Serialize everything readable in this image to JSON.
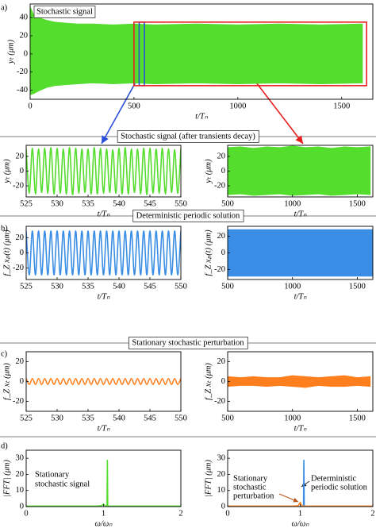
{
  "sections": [
    "Stochastic signal (after transients decay)",
    "Deterministic periodic solution",
    "Stationary stochastic perturbation"
  ],
  "chart_data": [
    {
      "type": "area",
      "panel_label": "a)",
      "annotation": "Stochastic signal",
      "xlabel": "t/Tₙ",
      "ylabel": "yₜ (μm)",
      "xlim": [
        0,
        1650
      ],
      "xticks": [
        0,
        500,
        1000,
        1500
      ],
      "ylim": [
        -50,
        55
      ],
      "yticks": [
        -40,
        -20,
        0,
        20,
        40
      ],
      "x": [
        0,
        15,
        40,
        80,
        120,
        170,
        230,
        300,
        400,
        500,
        600,
        800,
        1000,
        1200,
        1400,
        1600
      ],
      "series": [
        {
          "color": "#55dd2e",
          "upper": [
            52,
            44,
            40,
            37,
            35,
            34,
            33,
            33,
            32,
            33,
            32,
            33,
            32,
            33,
            32,
            33
          ],
          "lower": [
            -45,
            -44,
            -41,
            -37,
            -35,
            -34,
            -33,
            -32,
            -33,
            -32,
            -33,
            -32,
            -33,
            -32,
            -33,
            -32
          ]
        }
      ]
    },
    {
      "type": "line",
      "xlabel": "t/Tₙ",
      "ylabel": "yₜ (μm)",
      "xlim": [
        525,
        550
      ],
      "xticks": [
        525,
        530,
        535,
        540,
        545,
        550
      ],
      "ylim": [
        -35,
        35
      ],
      "yticks": [
        -20,
        0,
        20
      ],
      "x": [
        525,
        525.5,
        526,
        526.5,
        527,
        527.5,
        528,
        528.5,
        529,
        529.5,
        530,
        530.5,
        531,
        531.5,
        532,
        532.5,
        533,
        533.5,
        534,
        534.5,
        535,
        535.5,
        536,
        536.5,
        537,
        537.5,
        538,
        538.5,
        539,
        539.5,
        540,
        540.5,
        541,
        541.5,
        542,
        542.5,
        543,
        543.5,
        544,
        544.5,
        545,
        545.5,
        546,
        546.5,
        547,
        547.5,
        548,
        548.5,
        549,
        549.5,
        550
      ],
      "series": [
        {
          "color": "#55dd2e",
          "values": [
            30,
            -30,
            31,
            -31,
            30,
            -29,
            31,
            -30,
            32,
            -31,
            31,
            -30,
            30,
            -31,
            32,
            -32,
            31,
            -30,
            30,
            -29,
            30,
            -31,
            32,
            -31,
            31,
            -30,
            30,
            -29,
            29,
            -30,
            31,
            -31,
            32,
            -31,
            30,
            -29,
            30,
            -31,
            31,
            -32,
            31,
            -30,
            30,
            -30,
            31,
            -31,
            30,
            -29,
            29,
            -30,
            31
          ]
        }
      ]
    },
    {
      "type": "area",
      "xlabel": "t/Tₙ",
      "ylabel": "yₜ (μm)",
      "xlim": [
        500,
        1620
      ],
      "xticks": [
        500,
        1000,
        1500
      ],
      "ylim": [
        -35,
        35
      ],
      "yticks": [
        -20,
        0,
        20
      ],
      "x": [
        500,
        600,
        700,
        800,
        900,
        1000,
        1100,
        1200,
        1300,
        1400,
        1500,
        1600
      ],
      "series": [
        {
          "color": "#55dd2e",
          "upper": [
            32,
            33,
            31,
            33,
            32,
            34,
            32,
            33,
            31,
            33,
            32,
            33
          ],
          "lower": [
            -32,
            -31,
            -33,
            -32,
            -31,
            -33,
            -32,
            -31,
            -33,
            -32,
            -31,
            -32
          ]
        }
      ]
    },
    {
      "type": "line",
      "panel_label": "b)",
      "xlabel": "t/Tₙ",
      "ylabel": "f_Z xₚ(t) (μm)",
      "xlim": [
        525,
        550
      ],
      "xticks": [
        525,
        530,
        535,
        540,
        545,
        550
      ],
      "ylim": [
        -35,
        35
      ],
      "yticks": [
        -20,
        0,
        20
      ],
      "x": [
        525,
        525.5,
        526,
        526.5,
        527,
        527.5,
        528,
        528.5,
        529,
        529.5,
        530,
        530.5,
        531,
        531.5,
        532,
        532.5,
        533,
        533.5,
        534,
        534.5,
        535,
        535.5,
        536,
        536.5,
        537,
        537.5,
        538,
        538.5,
        539,
        539.5,
        540,
        540.5,
        541,
        541.5,
        542,
        542.5,
        543,
        543.5,
        544,
        544.5,
        545,
        545.5,
        546,
        546.5,
        547,
        547.5,
        548,
        548.5,
        549,
        549.5,
        550
      ],
      "series": [
        {
          "color": "#3a8ee6",
          "values": [
            29,
            -29,
            29,
            -29,
            29,
            -29,
            29,
            -29,
            29,
            -29,
            29,
            -29,
            29,
            -29,
            29,
            -29,
            29,
            -29,
            29,
            -29,
            29,
            -29,
            29,
            -29,
            29,
            -29,
            29,
            -29,
            29,
            -29,
            29,
            -29,
            29,
            -29,
            29,
            -29,
            29,
            -29,
            29,
            -29,
            29,
            -29,
            29,
            -29,
            29,
            -29,
            29,
            -29,
            29,
            -29,
            29
          ]
        }
      ]
    },
    {
      "type": "area",
      "xlabel": "t/Tₙ",
      "ylabel": "f_Z xₚ(t) (μm)",
      "xlim": [
        500,
        1620
      ],
      "xticks": [
        500,
        1000,
        1500
      ],
      "ylim": [
        -32,
        32
      ],
      "yticks": [
        -20,
        0,
        20
      ],
      "x": [
        500,
        1620
      ],
      "series": [
        {
          "color": "#3a8ee6",
          "upper": [
            28,
            28
          ],
          "lower": [
            -28,
            -28
          ]
        }
      ]
    },
    {
      "type": "line",
      "panel_label": "c)",
      "xlabel": "t/Tₙ",
      "ylabel": "f_Z xₜ (μm)",
      "xlim": [
        525,
        550
      ],
      "xticks": [
        525,
        530,
        535,
        540,
        545,
        550
      ],
      "ylim": [
        -30,
        30
      ],
      "yticks": [
        -20,
        0,
        20
      ],
      "x": [
        525,
        525.5,
        526,
        526.5,
        527,
        527.5,
        528,
        528.5,
        529,
        529.5,
        530,
        530.5,
        531,
        531.5,
        532,
        532.5,
        533,
        533.5,
        534,
        534.5,
        535,
        535.5,
        536,
        536.5,
        537,
        537.5,
        538,
        538.5,
        539,
        539.5,
        540,
        540.5,
        541,
        541.5,
        542,
        542.5,
        543,
        543.5,
        544,
        544.5,
        545,
        545.5,
        546,
        546.5,
        547,
        547.5,
        548,
        548.5,
        549,
        549.5,
        550
      ],
      "series": [
        {
          "color": "#ff7f1e",
          "values": [
            3,
            -3,
            3,
            -3,
            3,
            -3,
            3,
            -3,
            3,
            -3,
            3,
            -3,
            3,
            -3,
            3,
            -3,
            3,
            -3,
            3,
            -3,
            3,
            -3,
            3,
            -3,
            3,
            -3,
            3,
            -3,
            3,
            -3,
            3,
            -3,
            3,
            -3,
            3,
            -3,
            3,
            -3,
            3,
            -3,
            3,
            -3,
            3,
            -3,
            3,
            -3,
            3,
            -3,
            3,
            -3,
            3
          ]
        }
      ]
    },
    {
      "type": "area",
      "xlabel": "t/Tₙ",
      "ylabel": "f_Z xₜ (μm)",
      "xlim": [
        500,
        1620
      ],
      "xticks": [
        500,
        1000,
        1500
      ],
      "ylim": [
        -30,
        30
      ],
      "yticks": [
        -20,
        0,
        20
      ],
      "x": [
        500,
        600,
        700,
        800,
        900,
        1000,
        1100,
        1200,
        1300,
        1400,
        1500,
        1600
      ],
      "series": [
        {
          "color": "#ff7f1e",
          "upper": [
            5,
            4,
            5,
            4,
            4,
            6,
            5,
            4,
            5,
            6,
            4,
            5
          ],
          "lower": [
            -5,
            -4,
            -4,
            -5,
            -4,
            -5,
            -6,
            -4,
            -5,
            -5,
            -4,
            -5
          ]
        }
      ]
    },
    {
      "type": "spectrum",
      "panel_label": "d)",
      "annotation": [
        "Stationary",
        "stochastic signal"
      ],
      "xlabel": "ω/ωₙ",
      "ylabel": "|FFT| (μm)",
      "xlim": [
        0,
        2
      ],
      "xticks": [
        0,
        1,
        2
      ],
      "ylim": [
        0,
        35
      ],
      "yticks": [
        0,
        10,
        20,
        30
      ],
      "x": [
        0,
        0.9,
        0.97,
        1,
        1.02,
        1.04,
        1.045,
        1.05,
        1.055,
        1.07,
        2
      ],
      "series": [
        {
          "color": "#55dd2e",
          "values": [
            0.3,
            0.3,
            0.5,
            1.5,
            0.5,
            0.3,
            0.3,
            29,
            0.3,
            0.3,
            0.3
          ]
        }
      ]
    },
    {
      "type": "spectrum",
      "annotation": [
        [
          "Stationary",
          "stochastic",
          "perturbation"
        ],
        [
          "Deterministic",
          "periodic solution"
        ]
      ],
      "xlabel": "ω/ωₙ",
      "ylabel": "|FFT| (μm)",
      "xlim": [
        0,
        2
      ],
      "xticks": [
        0,
        1,
        2
      ],
      "ylim": [
        0,
        35
      ],
      "yticks": [
        0,
        10,
        20,
        30
      ],
      "x": [
        0,
        0.9,
        0.97,
        1,
        1.02,
        1.04,
        1.045,
        1.05,
        1.055,
        1.07,
        2
      ],
      "series": [
        {
          "color": "#3a8ee6",
          "values": [
            0,
            0,
            0,
            0,
            0,
            0,
            0,
            29,
            0,
            0,
            0
          ]
        },
        {
          "color": "#ff7f1e",
          "values": [
            0.3,
            0.3,
            0.5,
            2.5,
            0.5,
            0.3,
            0.3,
            0.3,
            0.3,
            0.3,
            0.3
          ]
        }
      ]
    }
  ]
}
